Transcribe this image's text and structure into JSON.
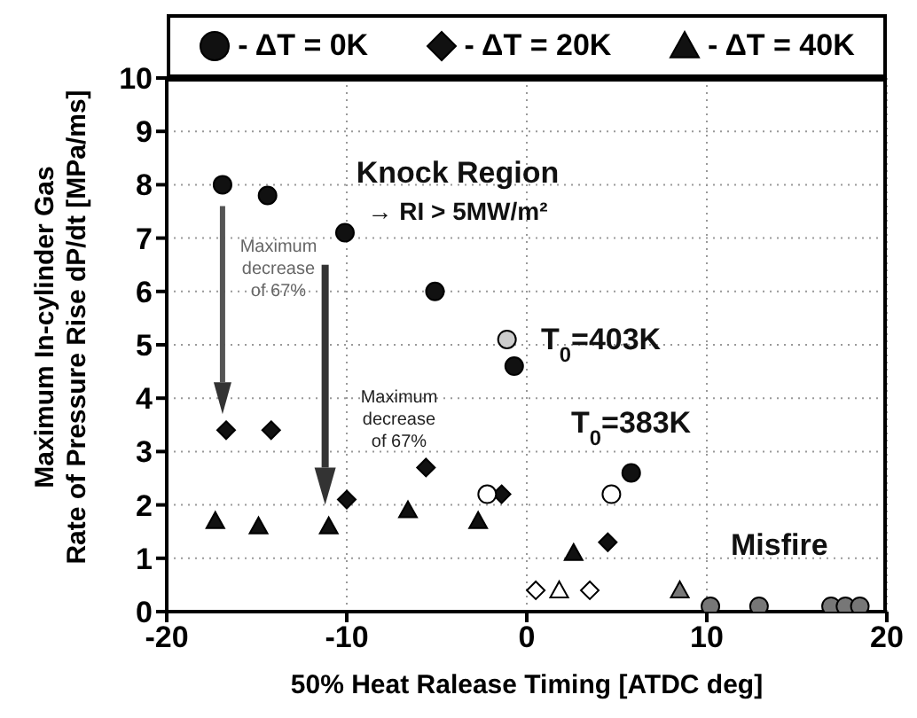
{
  "chart_data": {
    "type": "scatter",
    "xlabel": "50% Heat Ralease Timing [ATDC deg]",
    "ylabel": "Maximum In-cylinder Gas\nRate of Pressure Rise dP/dt [MPa/ms]",
    "xlim": [
      -20,
      20
    ],
    "xticks": [
      -20,
      -10,
      0,
      10,
      20
    ],
    "ylim": [
      0,
      10
    ],
    "yticks": [
      0,
      1,
      2,
      3,
      4,
      5,
      6,
      7,
      8,
      9,
      10
    ],
    "grid": true,
    "legend": "top",
    "series": [
      {
        "name": "- ΔT = 0K",
        "color": "#111111",
        "marker": "circle",
        "x": [
          -16.9,
          -14.4,
          -10.1,
          -5.1,
          -0.7,
          5.8
        ],
        "values": [
          8.0,
          7.8,
          7.1,
          6.0,
          4.6,
          2.6
        ]
      },
      {
        "name": "- ΔT = 20K",
        "color": "#111111",
        "marker": "diamond",
        "x": [
          -16.7,
          -14.2,
          -10.0,
          -5.6,
          -1.4,
          4.5
        ],
        "values": [
          3.4,
          3.4,
          2.1,
          2.7,
          2.2,
          1.3
        ]
      },
      {
        "name": "- ΔT = 40K",
        "color": "#111111",
        "marker": "triangle",
        "x": [
          -17.3,
          -14.9,
          -11.0,
          -6.6,
          -2.7,
          2.6
        ],
        "values": [
          1.7,
          1.6,
          1.6,
          1.9,
          1.7,
          1.1
        ]
      },
      {
        "color": "#ffffff",
        "marker": "circle",
        "x": [
          -2.2,
          4.7
        ],
        "values": [
          2.2,
          2.2
        ]
      },
      {
        "color": "#cccccc",
        "marker": "circle",
        "x": [
          -1.1
        ],
        "values": [
          5.1
        ]
      },
      {
        "color": "#777777",
        "marker": "circle",
        "x": [
          10.2,
          12.9,
          16.9,
          17.7,
          18.5
        ],
        "values": [
          0.1,
          0.1,
          0.1,
          0.1,
          0.1
        ]
      },
      {
        "color": "#ffffff",
        "marker": "diamond",
        "x": [
          0.5,
          3.5
        ],
        "values": [
          0.4,
          0.4
        ]
      },
      {
        "color": "#ffffff",
        "marker": "triangle",
        "x": [
          1.8
        ],
        "values": [
          0.4
        ]
      },
      {
        "color": "#777777",
        "marker": "triangle",
        "x": [
          8.5
        ],
        "values": [
          0.4
        ]
      }
    ],
    "annotations": [
      "Knock Region",
      "→ RI > 5MW/m²",
      "T$_{0}$=403K",
      "T$_{0}$=383K",
      "Misfire",
      "Maximum\ndecrease\nof 67%",
      "Maximum\ndecrease\nof 67%"
    ]
  }
}
